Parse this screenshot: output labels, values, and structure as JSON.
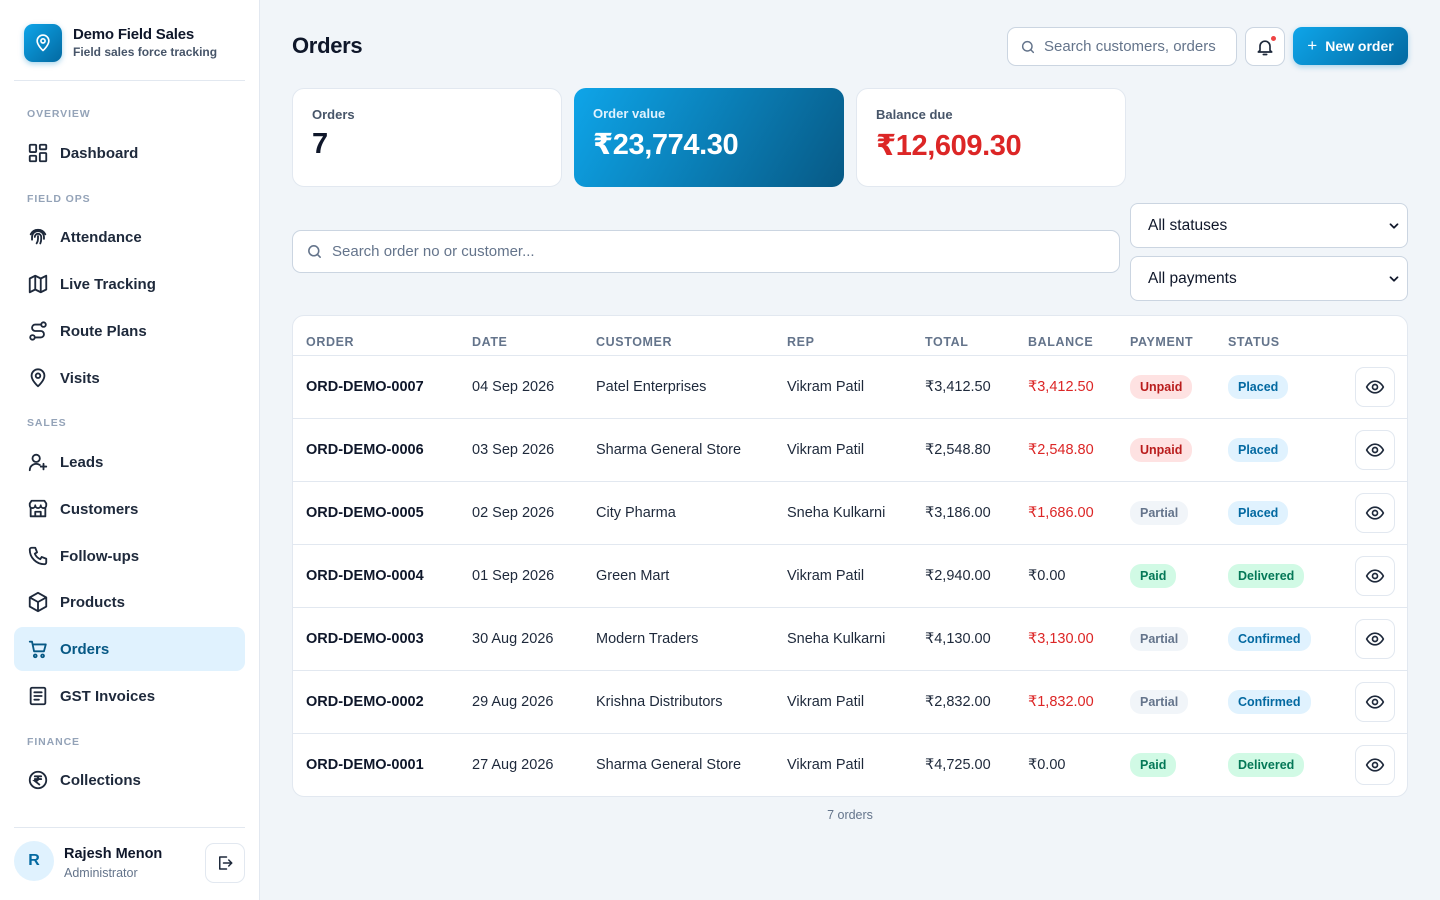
{
  "brand": {
    "title": "Demo Field Sales",
    "subtitle": "Field sales force tracking"
  },
  "nav": {
    "sections": {
      "overview": "OVERVIEW",
      "field_ops": "FIELD OPS",
      "sales": "SALES",
      "finance": "FINANCE"
    },
    "items": {
      "dashboard": "Dashboard",
      "attendance": "Attendance",
      "live_tracking": "Live Tracking",
      "route_plans": "Route Plans",
      "visits": "Visits",
      "leads": "Leads",
      "customers": "Customers",
      "followups": "Follow-ups",
      "products": "Products",
      "orders": "Orders",
      "gst_invoices": "GST Invoices",
      "collections": "Collections"
    },
    "active": "Orders"
  },
  "user": {
    "initial": "R",
    "name": "Rajesh Menon",
    "role": "Administrator"
  },
  "header": {
    "title": "Orders",
    "search_placeholder": "Search customers, orders",
    "new_order_label": "New order",
    "accent_color": "#0284c7"
  },
  "stats": {
    "orders_label": "Orders",
    "orders_value": "7",
    "order_value_label": "Order value",
    "order_value": "₹23,774.30",
    "balance_label": "Balance due",
    "balance_value": "₹12,609.30",
    "balance_color": "#dc2626"
  },
  "filters": {
    "search_placeholder": "Search order no or customer...",
    "status_selected": "All statuses",
    "payment_selected": "All payments"
  },
  "table": {
    "columns": [
      "ORDER",
      "DATE",
      "CUSTOMER",
      "REP",
      "TOTAL",
      "BALANCE",
      "PAYMENT",
      "STATUS"
    ],
    "rows": [
      {
        "order": "ORD-DEMO-0007",
        "date": "04 Sep 2026",
        "customer": "Patel Enterprises",
        "rep": "Vikram Patil",
        "total": "₹3,412.50",
        "balance": "₹3,412.50",
        "payment": "Unpaid",
        "status": "Placed"
      },
      {
        "order": "ORD-DEMO-0006",
        "date": "03 Sep 2026",
        "customer": "Sharma General Store",
        "rep": "Vikram Patil",
        "total": "₹2,548.80",
        "balance": "₹2,548.80",
        "payment": "Unpaid",
        "status": "Placed"
      },
      {
        "order": "ORD-DEMO-0005",
        "date": "02 Sep 2026",
        "customer": "City Pharma",
        "rep": "Sneha Kulkarni",
        "total": "₹3,186.00",
        "balance": "₹1,686.00",
        "payment": "Partial",
        "status": "Placed"
      },
      {
        "order": "ORD-DEMO-0004",
        "date": "01 Sep 2026",
        "customer": "Green Mart",
        "rep": "Vikram Patil",
        "total": "₹2,940.00",
        "balance": "₹0.00",
        "payment": "Paid",
        "status": "Delivered"
      },
      {
        "order": "ORD-DEMO-0003",
        "date": "30 Aug 2026",
        "customer": "Modern Traders",
        "rep": "Sneha Kulkarni",
        "total": "₹4,130.00",
        "balance": "₹3,130.00",
        "payment": "Partial",
        "status": "Confirmed"
      },
      {
        "order": "ORD-DEMO-0002",
        "date": "29 Aug 2026",
        "customer": "Krishna Distributors",
        "rep": "Vikram Patil",
        "total": "₹2,832.00",
        "balance": "₹1,832.00",
        "payment": "Partial",
        "status": "Confirmed"
      },
      {
        "order": "ORD-DEMO-0001",
        "date": "27 Aug 2026",
        "customer": "Sharma General Store",
        "rep": "Vikram Patil",
        "total": "₹4,725.00",
        "balance": "₹0.00",
        "payment": "Paid",
        "status": "Delivered"
      }
    ],
    "row_action_icon": "eye-icon"
  },
  "footer": {
    "count_label": "7 orders"
  }
}
